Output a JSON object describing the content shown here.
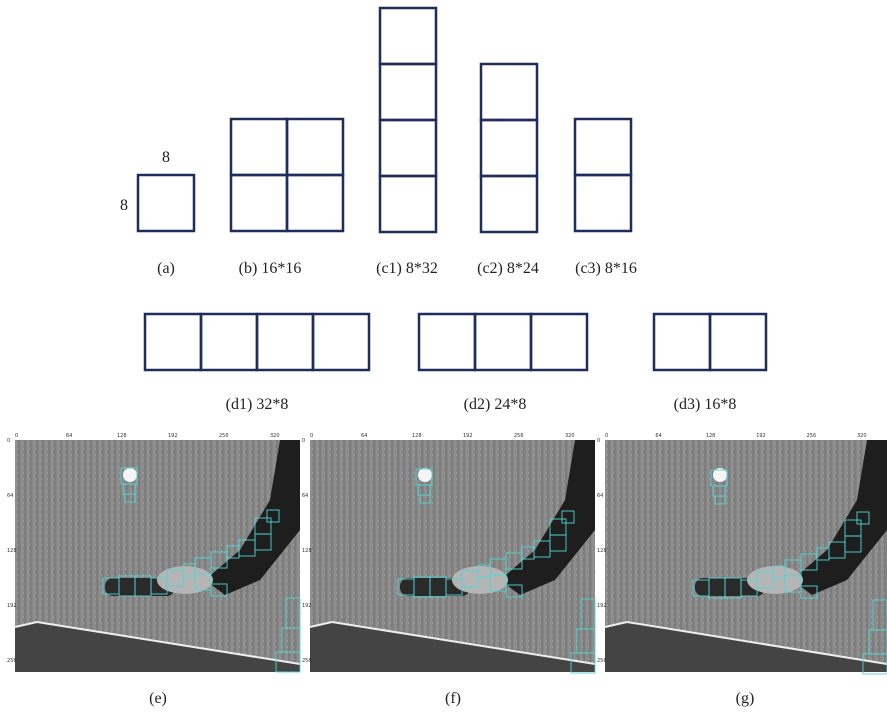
{
  "size_labels": {
    "top": "8",
    "left": "8"
  },
  "captions": {
    "a": "(a)",
    "b": "(b) 16*16",
    "c1": "(c1) 8*32",
    "c2": "(c2) 8*24",
    "c3": "(c3) 8*16",
    "d1": "(d1) 32*8",
    "d2": "(d2) 24*8",
    "d3": "(d3) 16*8",
    "e": "(e)",
    "f": "(f)",
    "g": "(g)"
  },
  "image_axis": {
    "x_ticks": [
      "0",
      "64",
      "128",
      "192",
      "256",
      "320"
    ],
    "y_ticks": [
      "0",
      "64",
      "128",
      "192",
      "256"
    ]
  }
}
